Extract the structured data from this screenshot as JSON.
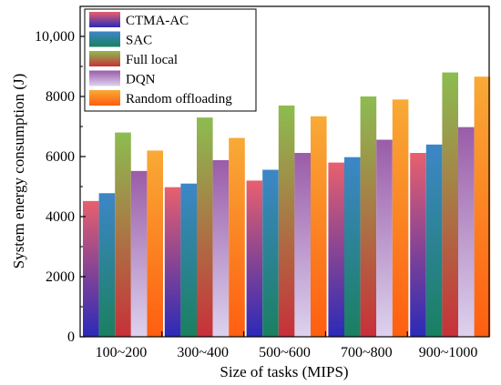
{
  "chart_data": {
    "type": "bar",
    "xlabel": "Size of tasks (MIPS)",
    "ylabel": "System energy consumption (J)",
    "categories": [
      "100~200",
      "300~400",
      "500~600",
      "700~800",
      "900~1000"
    ],
    "ylim": [
      0,
      11000
    ],
    "yticks": [
      0,
      2000,
      4000,
      6000,
      8000,
      10000
    ],
    "ytick_labels": [
      "0",
      "2000",
      "4000",
      "6000",
      "8000",
      "10,000"
    ],
    "grid": false,
    "legend_position": "top-left",
    "series": [
      {
        "name": "CTMA-AC",
        "values": [
          4520,
          4980,
          5200,
          5800,
          6120
        ],
        "color_top": "#e8606e",
        "color_bottom": "#2a2ab8"
      },
      {
        "name": "SAC",
        "values": [
          4780,
          5100,
          5560,
          5980,
          6400
        ],
        "color_top": "#3d86c8",
        "color_bottom": "#1a8060"
      },
      {
        "name": "Full local",
        "values": [
          6800,
          7300,
          7700,
          8000,
          8800
        ],
        "color_top": "#8cbd50",
        "color_bottom": "#c8303a"
      },
      {
        "name": "DQN",
        "values": [
          5520,
          5880,
          6120,
          6560,
          6980
        ],
        "color_top": "#9a5ca8",
        "color_bottom": "#ddd2ee"
      },
      {
        "name": "Random offloading",
        "values": [
          6200,
          6620,
          7340,
          7900,
          8660
        ],
        "color_top": "#f8aa36",
        "color_bottom": "#ff5e10"
      }
    ]
  }
}
